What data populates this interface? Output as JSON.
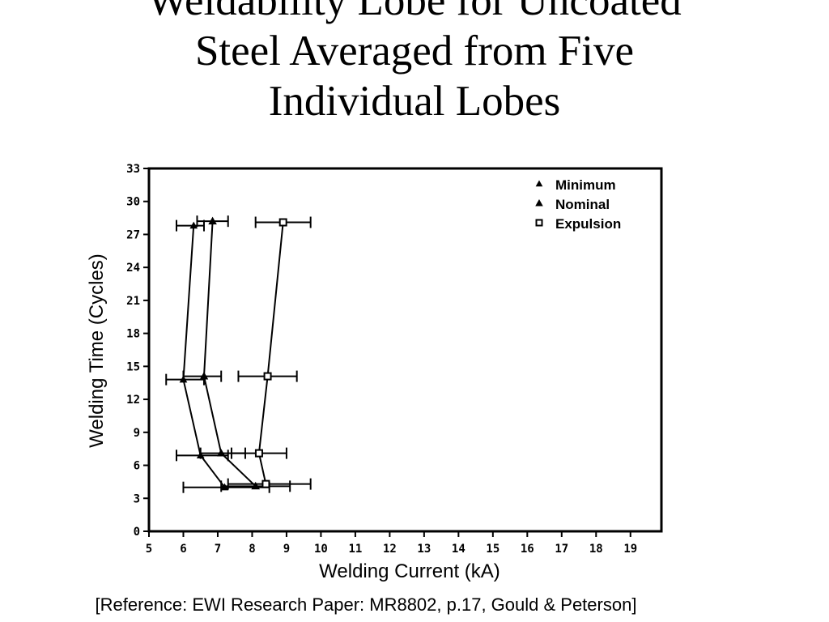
{
  "slide": {
    "title_lines": [
      "Weldability Lobe for Uncoated",
      "Steel Averaged from Five",
      "Individual Lobes"
    ],
    "reference": "[Reference: EWI Research Paper: MR8802, p.17, Gould & Peterson]"
  },
  "chart_data": {
    "type": "line",
    "xlabel": "Welding Current (kA)",
    "ylabel": "Welding Time (Cycles)",
    "xlim": [
      5,
      19.9
    ],
    "ylim": [
      0,
      33
    ],
    "xticks": [
      5,
      6,
      7,
      8,
      9,
      10,
      11,
      12,
      13,
      14,
      15,
      16,
      17,
      18,
      19
    ],
    "yticks": [
      0,
      3,
      6,
      9,
      12,
      15,
      18,
      21,
      24,
      27,
      30,
      33
    ],
    "grid": false,
    "legend_position": "top-right",
    "series": [
      {
        "name": "Minimum",
        "marker": "triangle",
        "color": "#000000",
        "points": [
          {
            "x": 7.2,
            "y": 4,
            "xerr": [
              6.0,
              8.5
            ]
          },
          {
            "x": 6.5,
            "y": 6.9,
            "xerr": [
              5.8,
              7.3
            ]
          },
          {
            "x": 6.0,
            "y": 13.8,
            "xerr": [
              5.5,
              6.6
            ]
          },
          {
            "x": 6.3,
            "y": 27.8,
            "xerr": [
              5.8,
              6.6
            ]
          }
        ]
      },
      {
        "name": "Nominal",
        "marker": "triangle-filled",
        "color": "#000000",
        "points": [
          {
            "x": 8.1,
            "y": 4.1,
            "xerr": [
              7.1,
              9.1
            ]
          },
          {
            "x": 7.1,
            "y": 7.1,
            "xerr": [
              6.5,
              7.8
            ]
          },
          {
            "x": 6.6,
            "y": 14.1,
            "xerr": [
              6.0,
              7.1
            ]
          },
          {
            "x": 6.85,
            "y": 28.2,
            "xerr": [
              6.4,
              7.3
            ]
          }
        ]
      },
      {
        "name": "Expulsion",
        "marker": "square",
        "color": "#000000",
        "points": [
          {
            "x": 8.4,
            "y": 4.3,
            "xerr": [
              7.3,
              9.7
            ]
          },
          {
            "x": 8.2,
            "y": 7.1,
            "xerr": [
              7.4,
              9.0
            ]
          },
          {
            "x": 8.45,
            "y": 14.1,
            "xerr": [
              7.6,
              9.3
            ]
          },
          {
            "x": 8.9,
            "y": 28.1,
            "xerr": [
              8.1,
              9.7
            ]
          }
        ]
      }
    ]
  }
}
